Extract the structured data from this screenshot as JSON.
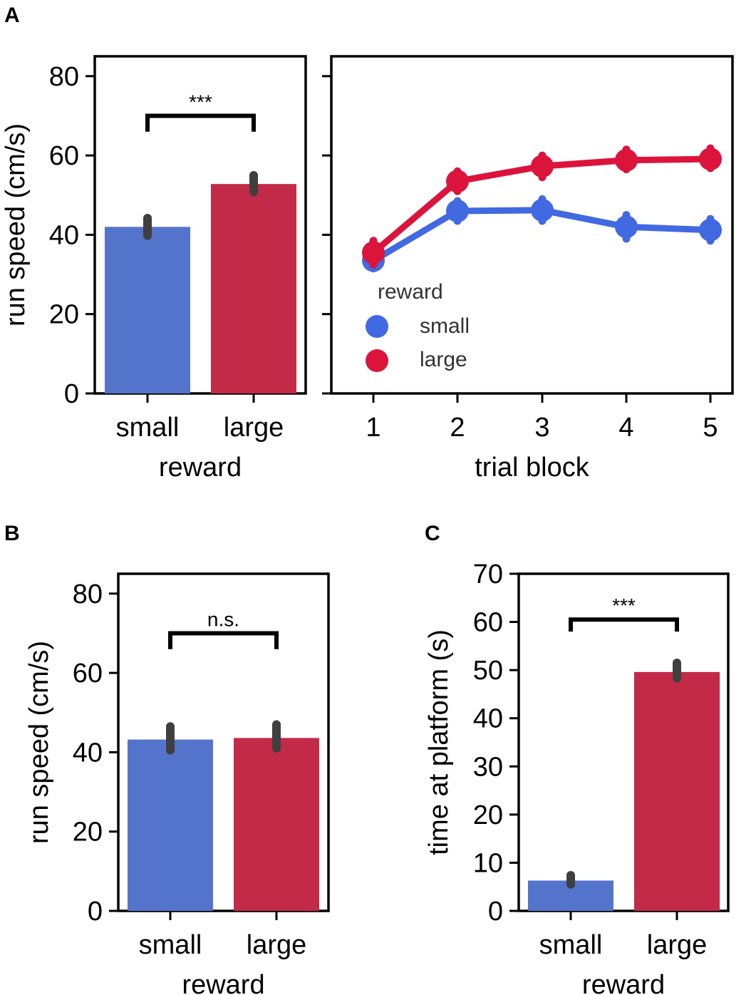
{
  "colors": {
    "small_bar": "#5474cc",
    "large_bar": "#c22a48",
    "small_line": "#4169e1",
    "large_line": "#dc143c",
    "errorbar": "#3f3f3f"
  },
  "chart_data": [
    {
      "id": "A-bar",
      "panel_label": "A",
      "type": "bar",
      "categories": [
        "small",
        "large"
      ],
      "values": [
        42,
        52.8
      ],
      "errors": [
        [
          39.8,
          44.2
        ],
        [
          50.8,
          55.0
        ]
      ],
      "xlabel": "reward",
      "ylabel": "run speed (cm/s)",
      "ylim": [
        0,
        85
      ],
      "yticks": [
        0,
        20,
        40,
        60,
        80
      ],
      "significance": {
        "label": "***",
        "y": 70,
        "drop": 4
      }
    },
    {
      "id": "A-line",
      "type": "line",
      "x": [
        1,
        2,
        3,
        4,
        5
      ],
      "xlabel": "trial block",
      "ylim": [
        0,
        85
      ],
      "yticks": [
        0,
        20,
        40,
        60,
        80
      ],
      "series": [
        {
          "name": "small",
          "values": [
            33.5,
            46,
            46.2,
            42,
            41.2
          ],
          "errors": [
            [
              31.5,
              35.5
            ],
            [
              43.5,
              48.5
            ],
            [
              43.5,
              49
            ],
            [
              39,
              45
            ],
            [
              38.5,
              44
            ]
          ]
        },
        {
          "name": "large",
          "values": [
            35.5,
            53.5,
            57.3,
            58.8,
            59.1
          ],
          "errors": [
            [
              32.5,
              38.5
            ],
            [
              51,
              56
            ],
            [
              54.5,
              60
            ],
            [
              56.5,
              61.5
            ],
            [
              56.8,
              61.8
            ]
          ]
        }
      ],
      "legend": {
        "title": "reward",
        "entries": [
          "small",
          "large"
        ],
        "position": "lower-left"
      }
    },
    {
      "id": "B-bar",
      "panel_label": "B",
      "type": "bar",
      "categories": [
        "small",
        "large"
      ],
      "values": [
        43.2,
        43.6
      ],
      "errors": [
        [
          40.5,
          46.5
        ],
        [
          41,
          47
        ]
      ],
      "xlabel": "reward",
      "ylabel": "run speed (cm/s)",
      "ylim": [
        0,
        85
      ],
      "yticks": [
        0,
        20,
        40,
        60,
        80
      ],
      "significance": {
        "label": "n.s.",
        "y": 70,
        "drop": 4
      }
    },
    {
      "id": "C-bar",
      "panel_label": "C",
      "type": "bar",
      "categories": [
        "small",
        "large"
      ],
      "values": [
        6.3,
        49.6
      ],
      "errors": [
        [
          5.5,
          7.4
        ],
        [
          48.3,
          51.5
        ]
      ],
      "xlabel": "reward",
      "ylabel": "time at platform (s)",
      "ylim": [
        0,
        70
      ],
      "yticks": [
        0,
        10,
        20,
        30,
        40,
        50,
        60,
        70
      ],
      "significance": {
        "label": "***",
        "y": 60.5,
        "drop": 2.5
      }
    }
  ]
}
